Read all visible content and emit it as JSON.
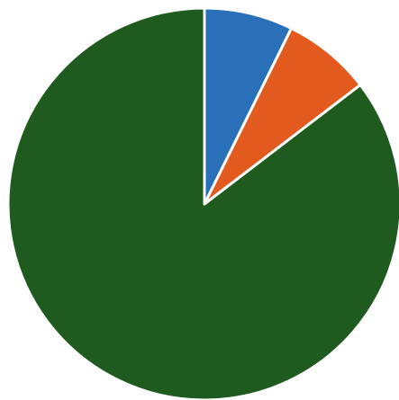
{
  "chart_data": {
    "type": "pie",
    "start_angle_deg": 0,
    "direction": "clockwise",
    "slices": [
      {
        "value": 7.3,
        "color": "#2a70b8"
      },
      {
        "value": 7.3,
        "color": "#e35a1f"
      },
      {
        "value": 85.4,
        "color": "#1f5a1f"
      }
    ],
    "separator_color": "#ffffff"
  }
}
